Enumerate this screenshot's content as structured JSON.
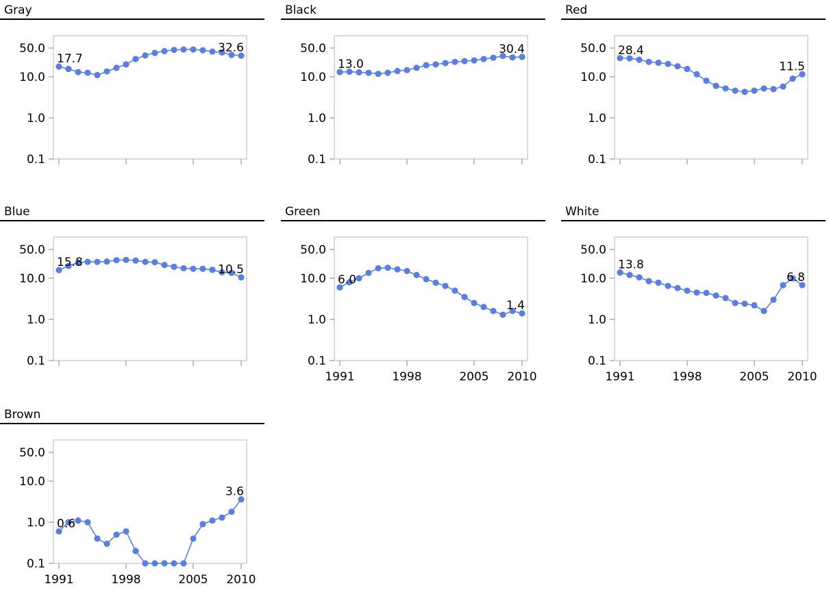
{
  "chart_data": {
    "type": "line",
    "layout": "small-multiples",
    "y_scale": "log",
    "ylim": [
      0.1,
      100
    ],
    "y_ticks": [
      "50.0",
      "10.0",
      "1.0",
      "0.1"
    ],
    "y_tick_values": [
      50,
      10,
      1,
      0.1
    ],
    "x_ticks": [
      "1991",
      "1998",
      "2005",
      "2010"
    ],
    "x_tick_values": [
      1991,
      1998,
      2005,
      2010
    ],
    "x_range": [
      1991,
      2010
    ],
    "x": [
      1991,
      1992,
      1993,
      1994,
      1995,
      1996,
      1997,
      1998,
      1999,
      2000,
      2001,
      2002,
      2003,
      2004,
      2005,
      2006,
      2007,
      2008,
      2009,
      2010
    ],
    "color": "#5b7fdc",
    "grid": false,
    "panels": [
      {
        "title": "Gray",
        "first_label": "17.7",
        "last_label": "32.6",
        "show_x_tick_labels": false,
        "values": [
          17.7,
          15.5,
          13.0,
          12.5,
          11.0,
          13.5,
          16.5,
          20.0,
          27.0,
          33.0,
          38.0,
          42.0,
          45.0,
          46.0,
          46.0,
          44.0,
          41.0,
          39.0,
          34.0,
          32.6
        ]
      },
      {
        "title": "Black",
        "first_label": "13.0",
        "last_label": "30.4",
        "show_x_tick_labels": false,
        "values": [
          13.0,
          13.3,
          12.8,
          12.5,
          11.8,
          12.5,
          13.8,
          14.5,
          16.5,
          19.0,
          20.0,
          21.5,
          23.0,
          24.0,
          25.0,
          27.0,
          29.0,
          32.0,
          29.5,
          30.4
        ]
      },
      {
        "title": "Red",
        "first_label": "28.4",
        "last_label": "11.5",
        "show_x_tick_labels": false,
        "values": [
          28.4,
          28.0,
          26.0,
          23.0,
          22.0,
          20.5,
          18.0,
          15.5,
          11.5,
          8.0,
          6.0,
          5.2,
          4.6,
          4.3,
          4.6,
          5.2,
          5.0,
          5.8,
          9.0,
          11.5
        ]
      },
      {
        "title": "Blue",
        "first_label": "15.8",
        "last_label": "10.5",
        "show_x_tick_labels": false,
        "values": [
          15.8,
          20.0,
          24.0,
          25.0,
          25.0,
          25.5,
          27.5,
          28.0,
          27.0,
          25.0,
          24.5,
          21.0,
          19.0,
          17.5,
          17.0,
          17.0,
          16.0,
          14.0,
          13.5,
          10.5
        ]
      },
      {
        "title": "Green",
        "first_label": "6.0",
        "last_label": "1.4",
        "show_x_tick_labels": true,
        "values": [
          6.0,
          8.0,
          10.0,
          13.5,
          17.5,
          18.0,
          16.5,
          15.0,
          12.0,
          9.5,
          7.8,
          6.5,
          5.0,
          3.5,
          2.5,
          2.0,
          1.6,
          1.3,
          1.6,
          1.4
        ]
      },
      {
        "title": "White",
        "first_label": "13.8",
        "last_label": "6.8",
        "show_x_tick_labels": true,
        "values": [
          13.8,
          12.0,
          10.5,
          8.5,
          7.8,
          6.5,
          5.8,
          5.0,
          4.5,
          4.4,
          3.8,
          3.3,
          2.5,
          2.4,
          2.2,
          1.6,
          3.0,
          6.8,
          10.0,
          6.8
        ]
      },
      {
        "title": "Brown",
        "first_label": "0.6",
        "last_label": "3.6",
        "show_x_tick_labels": true,
        "values": [
          0.6,
          1.0,
          1.1,
          1.0,
          0.4,
          0.3,
          0.5,
          0.6,
          0.2,
          0.1,
          0.1,
          0.1,
          0.1,
          0.1,
          0.4,
          0.9,
          1.1,
          1.3,
          1.8,
          3.6
        ]
      }
    ]
  }
}
